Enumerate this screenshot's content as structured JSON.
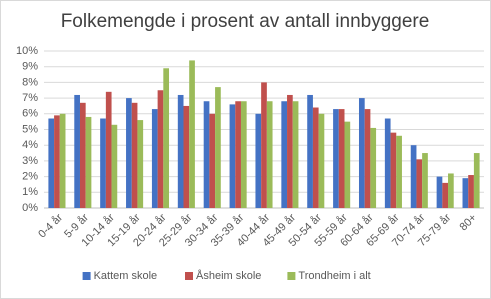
{
  "chart_data": {
    "type": "bar",
    "title": "Folkemengde i prosent av antall innbyggere",
    "categories": [
      "0-4 år",
      "5-9 år",
      "10-14 år",
      "15-19 år",
      "20-24 år",
      "25-29 år",
      "30-34 år",
      "35-39 år",
      "40-44 år",
      "45-49 år",
      "50-54 år",
      "55-59 år",
      "60-64 år",
      "65-69 år",
      "70-74 år",
      "75-79 år",
      "80+"
    ],
    "series": [
      {
        "name": "Kattem skole",
        "color": "#4472c4",
        "values": [
          5.7,
          7.2,
          5.7,
          7.0,
          6.3,
          7.2,
          6.8,
          6.6,
          6.0,
          6.8,
          7.2,
          6.3,
          7.0,
          5.7,
          4.0,
          2.0,
          1.9
        ]
      },
      {
        "name": "Åsheim skole",
        "color": "#c0504d",
        "values": [
          5.9,
          6.7,
          7.4,
          6.7,
          7.5,
          6.5,
          6.0,
          6.8,
          8.0,
          7.2,
          6.4,
          6.3,
          6.3,
          4.8,
          3.1,
          1.6,
          2.1
        ]
      },
      {
        "name": "Trondheim i alt",
        "color": "#9bbb59",
        "values": [
          6.0,
          5.8,
          5.3,
          5.6,
          8.9,
          9.4,
          7.7,
          6.8,
          6.8,
          6.8,
          6.0,
          5.5,
          5.1,
          4.6,
          3.5,
          2.2,
          3.5
        ]
      }
    ],
    "ylim": [
      0,
      10
    ],
    "yticks": [
      {
        "value": 0,
        "label": "0%"
      },
      {
        "value": 1,
        "label": "1%"
      },
      {
        "value": 2,
        "label": "2%"
      },
      {
        "value": 3,
        "label": "3%"
      },
      {
        "value": 4,
        "label": "4%"
      },
      {
        "value": 5,
        "label": "5%"
      },
      {
        "value": 6,
        "label": "6%"
      },
      {
        "value": 7,
        "label": "7%"
      },
      {
        "value": 8,
        "label": "8%"
      },
      {
        "value": 9,
        "label": "9%"
      },
      {
        "value": 10,
        "label": "10%"
      }
    ],
    "grid": true,
    "legend": "bottom"
  }
}
